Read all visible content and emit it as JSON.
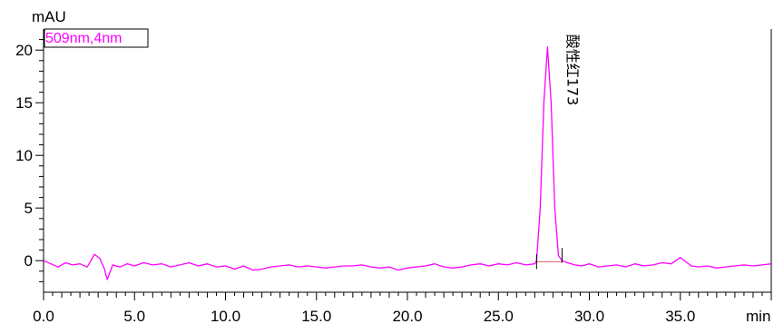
{
  "chart_data": {
    "type": "line",
    "ylabel": "mAU",
    "xlabel": "min",
    "xlim": [
      0,
      40
    ],
    "ylim": [
      -3,
      22
    ],
    "x_ticks": [
      "0.0",
      "5.0",
      "10.0",
      "15.0",
      "20.0",
      "25.0",
      "30.0",
      "35.0"
    ],
    "y_ticks": [
      "20",
      "15",
      "10",
      "5",
      "0"
    ],
    "legend": {
      "label": "509nm,4nm",
      "color": "#ff00ff",
      "placement": "top-left"
    },
    "peak": {
      "label": "酸性红173",
      "time": 27.7,
      "height": 20.3,
      "start": 27.1,
      "end": 28.5
    },
    "series": [
      {
        "color": "#ff00ff",
        "x": [
          0,
          0.4,
          0.8,
          1.2,
          1.6,
          2.0,
          2.4,
          2.8,
          3.1,
          3.35,
          3.5,
          3.8,
          4.2,
          4.6,
          5.0,
          5.5,
          6.0,
          6.5,
          7.0,
          7.5,
          8.0,
          8.5,
          9.0,
          9.5,
          10.0,
          10.5,
          11.0,
          11.5,
          12.0,
          12.5,
          13.0,
          13.5,
          14.0,
          14.5,
          15.0,
          15.5,
          16.0,
          16.5,
          17.0,
          17.5,
          18.0,
          18.5,
          19.0,
          19.5,
          20.0,
          20.5,
          21.0,
          21.5,
          22.0,
          22.5,
          23.0,
          23.5,
          24.0,
          24.5,
          25.0,
          25.5,
          26.0,
          26.5,
          27.0,
          27.1,
          27.3,
          27.5,
          27.7,
          27.9,
          28.1,
          28.3,
          28.5,
          28.8,
          29.2,
          29.6,
          30.0,
          30.5,
          31.0,
          31.5,
          32.0,
          32.5,
          33.0,
          33.5,
          34.0,
          34.5,
          35.0,
          35.3,
          35.6,
          36.0,
          36.5,
          37.0,
          37.5,
          38.0,
          38.5,
          39.0,
          39.5,
          40.0
        ],
        "values": [
          0.0,
          -0.3,
          -0.6,
          -0.2,
          -0.4,
          -0.3,
          -0.6,
          0.6,
          0.2,
          -0.8,
          -1.8,
          -0.4,
          -0.6,
          -0.3,
          -0.5,
          -0.2,
          -0.4,
          -0.3,
          -0.6,
          -0.4,
          -0.2,
          -0.5,
          -0.3,
          -0.6,
          -0.5,
          -0.8,
          -0.5,
          -0.9,
          -0.8,
          -0.6,
          -0.5,
          -0.4,
          -0.6,
          -0.5,
          -0.6,
          -0.7,
          -0.6,
          -0.5,
          -0.5,
          -0.4,
          -0.6,
          -0.7,
          -0.6,
          -0.9,
          -0.7,
          -0.6,
          -0.5,
          -0.3,
          -0.6,
          -0.7,
          -0.6,
          -0.4,
          -0.3,
          -0.5,
          -0.3,
          -0.4,
          -0.2,
          -0.4,
          -0.3,
          0.0,
          5.0,
          15.0,
          20.3,
          15.0,
          5.0,
          0.5,
          0.0,
          -0.2,
          -0.4,
          -0.5,
          -0.3,
          -0.6,
          -0.5,
          -0.4,
          -0.6,
          -0.3,
          -0.5,
          -0.4,
          -0.2,
          -0.3,
          0.3,
          -0.1,
          -0.5,
          -0.6,
          -0.5,
          -0.7,
          -0.6,
          -0.5,
          -0.4,
          -0.5,
          -0.4,
          -0.3
        ]
      }
    ]
  }
}
